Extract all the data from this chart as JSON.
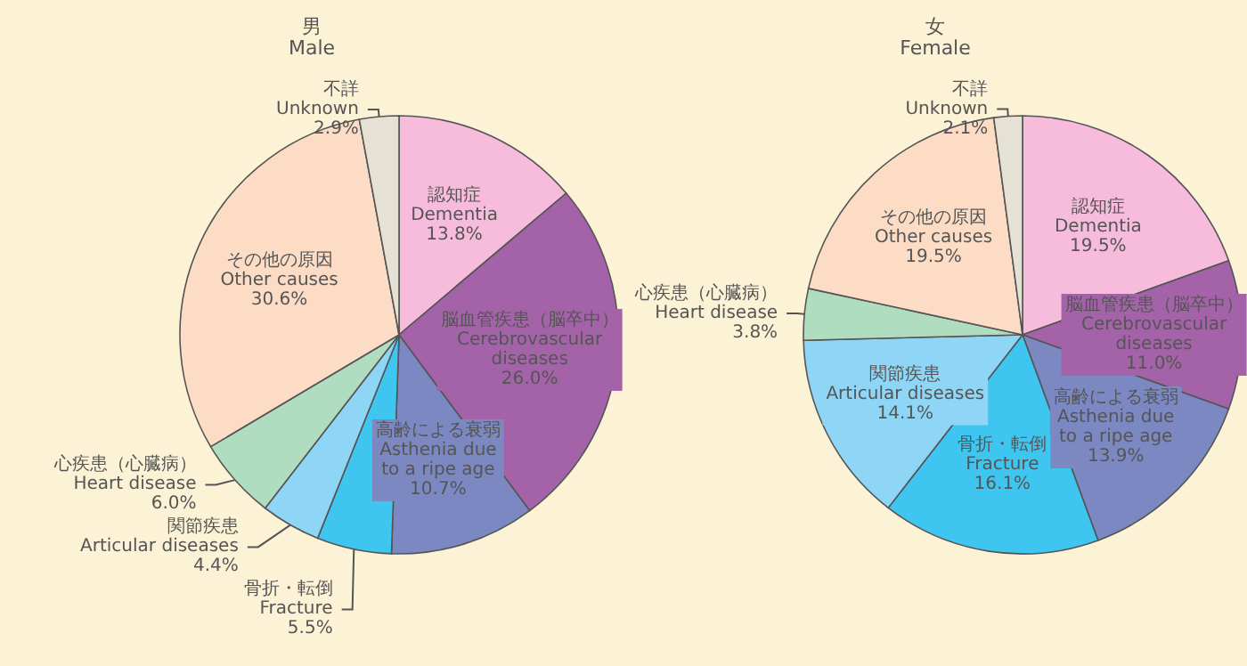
{
  "chart_data": [
    {
      "type": "pie",
      "title": "男\nMale",
      "categories": [
        "認知症\nDementia",
        "脳血管疾患（脳卒中）\nCerebrovascular\ndiseases",
        "高齢による衰弱\nAsthenia due\nto a ripe age",
        "骨折・転倒\nFracture",
        "関節疾患\nArticular diseases",
        "心疾患（心臓病）\nHeart disease",
        "その他の原因\nOther causes",
        "不詳\nUnknown"
      ],
      "values": [
        13.8,
        26.0,
        10.7,
        5.5,
        4.4,
        6.0,
        30.6,
        2.9
      ],
      "value_labels": [
        "13.8%",
        "26.0%",
        "10.7%",
        "5.5%",
        "4.4%",
        "6.0%",
        "30.6%",
        "2.9%"
      ],
      "colors": [
        "#f7bcdb",
        "#a463a8",
        "#7b88c2",
        "#3ec6f0",
        "#8fd6f6",
        "#b0dcc0",
        "#fddcc6",
        "#e5e1d4"
      ]
    },
    {
      "type": "pie",
      "title": "女\nFemale",
      "categories": [
        "認知症\nDementia",
        "脳血管疾患（脳卒中）\nCerebrovascular\ndiseases",
        "高齢による衰弱\nAsthenia due\nto a ripe age",
        "骨折・転倒\nFracture",
        "関節疾患\nArticular diseases",
        "心疾患（心臓病）\nHeart disease",
        "その他の原因\nOther causes",
        "不詳\nUnknown"
      ],
      "values": [
        19.5,
        11.0,
        13.9,
        16.1,
        14.1,
        3.8,
        19.5,
        2.1
      ],
      "value_labels": [
        "19.5%",
        "11.0%",
        "13.9%",
        "16.1%",
        "14.1%",
        "3.8%",
        "19.5%",
        "2.1%"
      ],
      "colors": [
        "#f7bcdb",
        "#a463a8",
        "#7b88c2",
        "#3ec6f0",
        "#8fd6f6",
        "#b0dcc0",
        "#fddcc6",
        "#e5e1d4"
      ]
    }
  ]
}
